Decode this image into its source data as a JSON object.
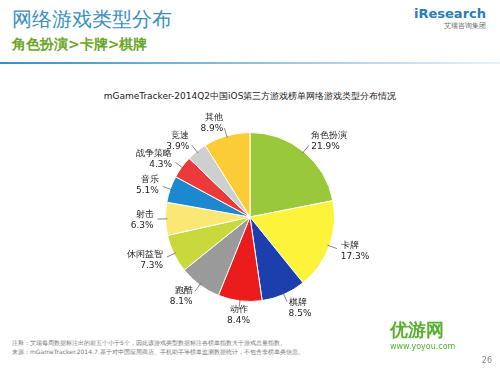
{
  "slide": {
    "heading": "网络游戏类型分布",
    "subheading": "角色扮演>卡牌>棋牌",
    "logo": "iResearch",
    "logo_sub": "艾瑞咨询集团",
    "notes": [
      "注释：艾瑞每周数据标注出的前五个小于5个，因此该游戏类型数据标注各榜单指数大于游戏总量指数。",
      "来源：mGameTracker.2014.7.基于对中国应用商店、手机助手等榜单监测数据统计，不包含非榜单类信息。"
    ],
    "watermark": "优游网",
    "watermark_url": "www.yoyou.com",
    "page": "26"
  },
  "chart_data": {
    "type": "pie",
    "title": "mGameTracker-2014Q2中国iOS第三方游戏榜单网络游戏类型分布情况",
    "categories": [
      "角色扮演",
      "卡牌",
      "棋牌",
      "动作",
      "跑酷",
      "休闲益智",
      "射击",
      "音乐",
      "战争策略",
      "竞速",
      "其他"
    ],
    "values": [
      21.9,
      17.3,
      8.5,
      8.4,
      8.1,
      7.3,
      6.3,
      5.1,
      4.3,
      3.9,
      8.9
    ],
    "value_labels": [
      "21.9%",
      "17.3%",
      "8.5%",
      "8.4%",
      "8.1%",
      "7.3%",
      "6.3%",
      "5.1%",
      "4.3%",
      "3.9%",
      "8.9%"
    ],
    "colors": [
      "#99c93a",
      "#fdf33a",
      "#1d3fae",
      "#ea1c1c",
      "#9a9a9a",
      "#c9d83c",
      "#fbe874",
      "#1b88d0",
      "#ec3a3a",
      "#cfcfcf",
      "#fccc36"
    ],
    "data_labels": true
  }
}
